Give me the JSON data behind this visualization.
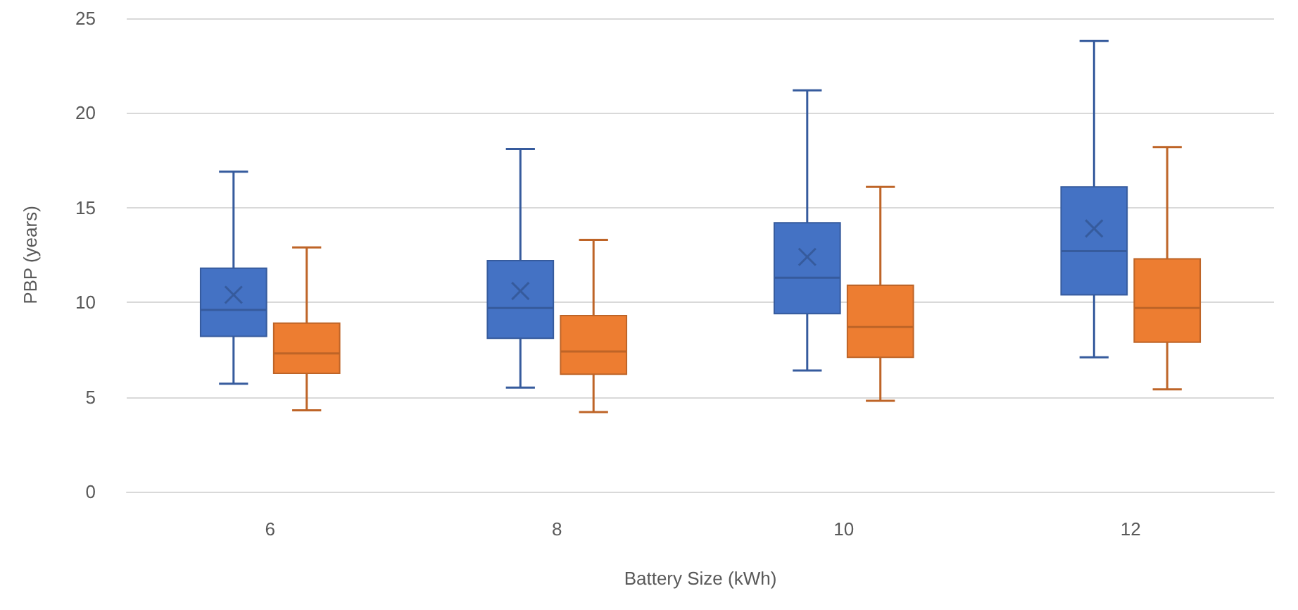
{
  "chart_data": {
    "type": "box",
    "xlabel": "Battery Size (kWh)",
    "ylabel": "PBP (years)",
    "categories": [
      "6",
      "8",
      "10",
      "12"
    ],
    "ylim": [
      0,
      25
    ],
    "yticks": [
      0,
      5,
      10,
      15,
      20,
      25
    ],
    "grid": "y",
    "series": [
      {
        "color": "#4472c4",
        "boxes": [
          {
            "low": 5.7,
            "q1": 8.2,
            "median": 9.6,
            "q3": 11.8,
            "high": 16.9,
            "mean": 10.4
          },
          {
            "low": 5.5,
            "q1": 8.1,
            "median": 9.7,
            "q3": 12.2,
            "high": 18.1,
            "mean": 10.6
          },
          {
            "low": 6.4,
            "q1": 9.4,
            "median": 11.3,
            "q3": 14.2,
            "high": 21.2,
            "mean": 12.4
          },
          {
            "low": 7.1,
            "q1": 10.4,
            "median": 12.7,
            "q3": 16.1,
            "high": 23.8,
            "mean": 13.9
          }
        ]
      },
      {
        "color": "#ed7d31",
        "boxes": [
          {
            "low": 4.3,
            "q1": 6.25,
            "median": 7.3,
            "q3": 8.9,
            "high": 12.9
          },
          {
            "low": 4.2,
            "q1": 6.2,
            "median": 7.4,
            "q3": 9.3,
            "high": 13.3
          },
          {
            "low": 4.8,
            "q1": 7.1,
            "median": 8.7,
            "q3": 10.9,
            "high": 16.1
          },
          {
            "low": 5.4,
            "q1": 7.9,
            "median": 9.7,
            "q3": 12.3,
            "high": 18.2
          }
        ]
      }
    ]
  }
}
